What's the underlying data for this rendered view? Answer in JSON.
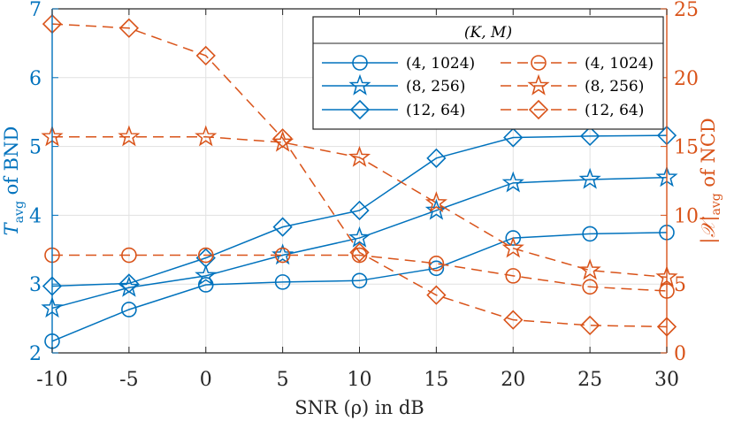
{
  "chart_data": {
    "type": "line",
    "x": [
      -10,
      -5,
      0,
      5,
      10,
      15,
      20,
      25,
      30
    ],
    "xlabel": "SNR (ρ) in dB",
    "xlim": [
      -10,
      30
    ],
    "xticks": [
      "-10",
      "-5",
      "0",
      "5",
      "10",
      "15",
      "20",
      "25",
      "30"
    ],
    "left_axis": {
      "label_main": "T",
      "label_sub": "avg",
      "label_rest": " of BND",
      "ylim": [
        2,
        7
      ],
      "ticks": [
        "2",
        "3",
        "4",
        "5",
        "6",
        "7"
      ],
      "color": "#0072BD"
    },
    "right_axis": {
      "label_main": "|𝒳|",
      "label_sub": "avg",
      "label_rest": " of NCD",
      "ylim": [
        0,
        25
      ],
      "ticks": [
        "0",
        "5",
        "10",
        "15",
        "20",
        "25"
      ],
      "color": "#D95319"
    },
    "legend": {
      "title": "(K, M)",
      "position": "top-right"
    },
    "series": [
      {
        "name": "(4, 1024)",
        "axis": "left",
        "marker": "circle",
        "dash": false,
        "color": "#0072BD",
        "values": [
          2.17,
          2.63,
          2.99,
          3.03,
          3.05,
          3.23,
          3.67,
          3.73,
          3.75
        ]
      },
      {
        "name": "(8, 256)",
        "axis": "left",
        "marker": "star",
        "dash": false,
        "color": "#0072BD",
        "values": [
          2.65,
          2.95,
          3.12,
          3.42,
          3.67,
          4.07,
          4.47,
          4.52,
          4.55
        ]
      },
      {
        "name": "(12, 64)",
        "axis": "left",
        "marker": "diamond",
        "dash": false,
        "color": "#0072BD",
        "values": [
          2.97,
          3.01,
          3.38,
          3.83,
          4.07,
          4.83,
          5.13,
          5.15,
          5.16
        ]
      },
      {
        "name": "(4, 1024)",
        "axis": "right",
        "marker": "circle",
        "dash": true,
        "color": "#D95319",
        "values": [
          7.1,
          7.1,
          7.1,
          7.1,
          7.1,
          6.5,
          5.6,
          4.8,
          4.5
        ]
      },
      {
        "name": "(8, 256)",
        "axis": "right",
        "marker": "star",
        "dash": true,
        "color": "#D95319",
        "values": [
          15.7,
          15.7,
          15.7,
          15.3,
          14.2,
          10.9,
          7.6,
          6.0,
          5.5
        ]
      },
      {
        "name": "(12, 64)",
        "axis": "right",
        "marker": "diamond",
        "dash": true,
        "color": "#D95319",
        "values": [
          23.9,
          23.6,
          21.6,
          15.6,
          7.3,
          4.2,
          2.4,
          2.0,
          1.9
        ]
      }
    ]
  }
}
